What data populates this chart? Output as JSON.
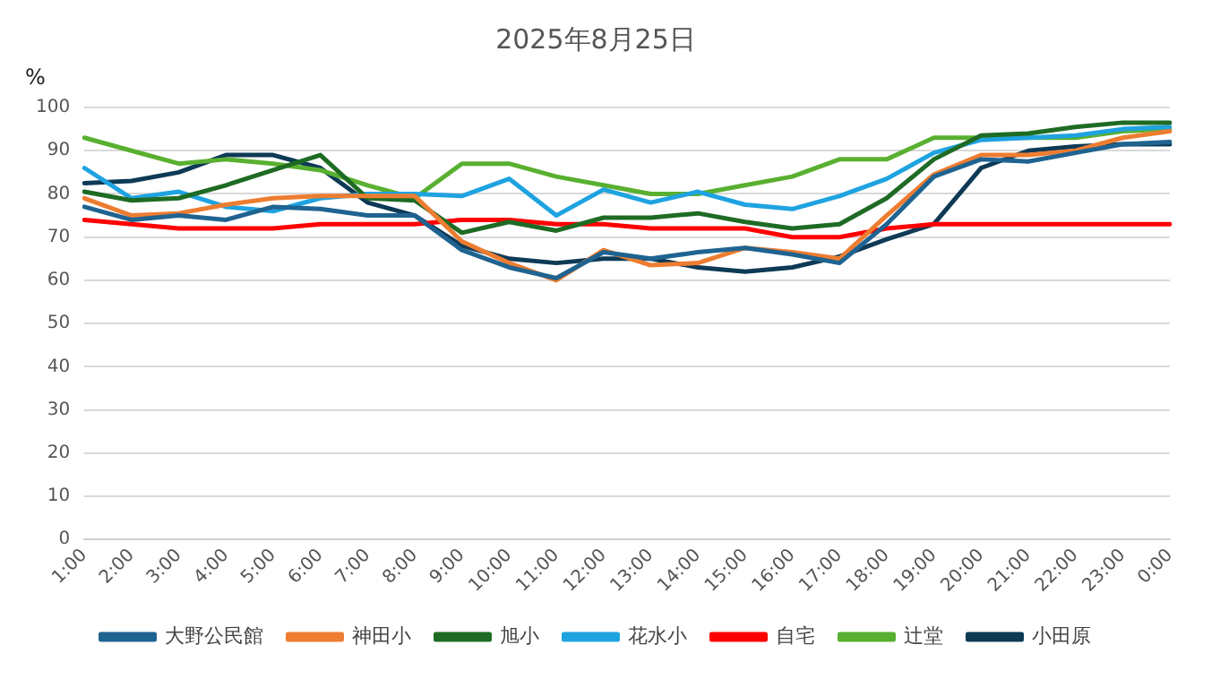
{
  "chart_data": {
    "type": "line",
    "title": "2025年8月25日",
    "ylabel": "%",
    "categories": [
      "1:00",
      "2:00",
      "3:00",
      "4:00",
      "5:00",
      "6:00",
      "7:00",
      "8:00",
      "9:00",
      "10:00",
      "11:00",
      "12:00",
      "13:00",
      "14:00",
      "15:00",
      "16:00",
      "17:00",
      "18:00",
      "19:00",
      "20:00",
      "21:00",
      "22:00",
      "23:00",
      "0:00"
    ],
    "ylim": [
      0,
      100
    ],
    "yticks": [
      0,
      10,
      20,
      30,
      40,
      50,
      60,
      70,
      80,
      90,
      100
    ],
    "grid": "y",
    "legend": "bottom",
    "marker": "none",
    "line_style": "solid",
    "series": [
      {
        "name": "大野公民館",
        "color": "#1f6391",
        "values": [
          77,
          74,
          75,
          74,
          77,
          76.5,
          75,
          75,
          67,
          63,
          60.5,
          66.5,
          65,
          66.5,
          67.5,
          66,
          64,
          73,
          84,
          88,
          87.5,
          89.5,
          91.5,
          92
        ]
      },
      {
        "name": "神田小",
        "color": "#ed7d31",
        "values": [
          79,
          75,
          75.5,
          77.5,
          79,
          79.5,
          79.5,
          79.5,
          69,
          64,
          60,
          67,
          63.5,
          64,
          67.5,
          66.5,
          65,
          75,
          84.5,
          89,
          89,
          90,
          93,
          94.5
        ]
      },
      {
        "name": "旭小",
        "color": "#1e6b24",
        "values": [
          80.5,
          78.5,
          79,
          82,
          85.5,
          89,
          79,
          78.5,
          71,
          73.5,
          71.5,
          74.5,
          74.5,
          75.5,
          73.5,
          72,
          73,
          79,
          88,
          93.5,
          94,
          95.5,
          96.5,
          96.5
        ]
      },
      {
        "name": "花水小",
        "color": "#1fa3e0",
        "values": [
          86,
          79,
          80.5,
          77,
          76,
          79,
          80,
          80,
          79.5,
          83.5,
          75,
          81,
          78,
          80.5,
          77.5,
          76.5,
          79.5,
          83.5,
          89.5,
          92.5,
          93,
          93.5,
          95,
          95.5
        ]
      },
      {
        "name": "自宅",
        "color": "#ff0000",
        "values": [
          74,
          73,
          72,
          72,
          72,
          73,
          73,
          73,
          74,
          74,
          73,
          73,
          72,
          72,
          72,
          70,
          70,
          72,
          73,
          73,
          73,
          73,
          73,
          73
        ]
      },
      {
        "name": "辻堂",
        "color": "#59b030",
        "values": [
          93,
          90,
          87,
          88,
          87,
          85.5,
          82,
          79,
          87,
          87,
          84,
          82,
          80,
          80,
          82,
          84,
          88,
          88,
          93,
          93,
          93,
          93,
          94.5,
          95
        ]
      },
      {
        "name": "小田原",
        "color": "#0e3a56",
        "values": [
          82.5,
          83,
          85,
          89,
          89,
          86,
          78,
          75,
          68,
          65,
          64,
          65,
          65,
          63,
          62,
          63,
          65.5,
          69.5,
          73,
          86,
          90,
          91,
          91.5,
          91.5
        ]
      }
    ]
  }
}
